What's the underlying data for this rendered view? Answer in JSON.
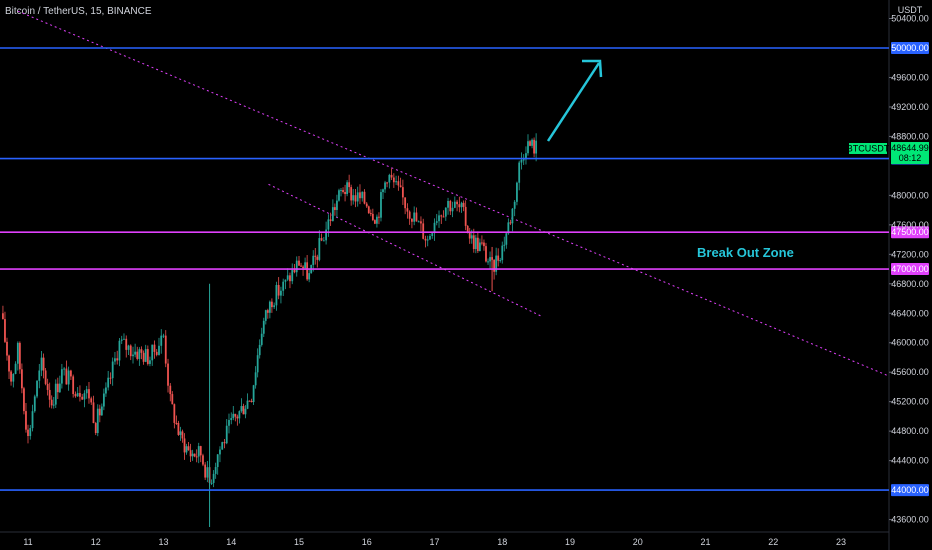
{
  "header": {
    "title": "Bitcoin / TetherUS, 15, BINANCE"
  },
  "axis": {
    "currency": "USDT"
  },
  "chart_data": {
    "type": "candlestick",
    "title": "Bitcoin / TetherUS, 15, BINANCE",
    "x_ticks": [
      "11",
      "12",
      "13",
      "14",
      "15",
      "16",
      "17",
      "18",
      "19",
      "20",
      "21",
      "22",
      "23"
    ],
    "y_ticks": [
      "50400.00",
      "49600.00",
      "49200.00",
      "48800.00",
      "48000.00",
      "47600.00",
      "47200.00",
      "46800.00",
      "46400.00",
      "46000.00",
      "45600.00",
      "45200.00",
      "44800.00",
      "44400.00",
      "43600.00"
    ],
    "ylim": [
      43400,
      50550
    ],
    "grid": false,
    "horizontal_levels": [
      {
        "price": 50000,
        "label": "50000.00",
        "color": "#2962ff"
      },
      {
        "price": 48500,
        "label": "48500.00",
        "color": "#2962ff"
      },
      {
        "price": 47500,
        "label": "47500.00",
        "color": "#e040fb"
      },
      {
        "price": 47000,
        "label": "47000.00",
        "color": "#e040fb"
      },
      {
        "price": 44000,
        "label": "44000.00",
        "color": "#2962ff"
      }
    ],
    "last_price": {
      "symbol": "BTCUSDT",
      "price": "48644.99",
      "timer": "08:12",
      "color": "#00e676"
    },
    "annotation": {
      "text": "Break Out Zone",
      "color": "#26c6da"
    },
    "trend_lines": [
      {
        "from": [
          "10.85",
          50500
        ],
        "to": [
          "23.7",
          45550
        ],
        "color": "#e040fb",
        "style": "dotted"
      },
      {
        "from": [
          "14.55",
          48150
        ],
        "to": [
          "18.6",
          46350
        ],
        "color": "#e040fb",
        "style": "dotted"
      }
    ],
    "price_path": [
      {
        "day": 10.6,
        "price": 46400
      },
      {
        "day": 10.75,
        "price": 45500
      },
      {
        "day": 10.85,
        "price": 45900
      },
      {
        "day": 11.0,
        "price": 44700
      },
      {
        "day": 11.1,
        "price": 45300
      },
      {
        "day": 11.2,
        "price": 45700
      },
      {
        "day": 11.35,
        "price": 45200
      },
      {
        "day": 11.5,
        "price": 45600
      },
      {
        "day": 11.7,
        "price": 45400
      },
      {
        "day": 11.9,
        "price": 45300
      },
      {
        "day": 12.0,
        "price": 44900
      },
      {
        "day": 12.15,
        "price": 45300
      },
      {
        "day": 12.35,
        "price": 46000
      },
      {
        "day": 12.55,
        "price": 45900
      },
      {
        "day": 12.8,
        "price": 45800
      },
      {
        "day": 13.0,
        "price": 46100
      },
      {
        "day": 13.1,
        "price": 45200
      },
      {
        "day": 13.25,
        "price": 44700
      },
      {
        "day": 13.4,
        "price": 44500
      },
      {
        "day": 13.55,
        "price": 44500
      },
      {
        "day": 13.68,
        "price": 44100
      },
      {
        "day": 13.8,
        "price": 44500
      },
      {
        "day": 14.0,
        "price": 44900
      },
      {
        "day": 14.15,
        "price": 45100
      },
      {
        "day": 14.3,
        "price": 45300
      },
      {
        "day": 14.45,
        "price": 46200
      },
      {
        "day": 14.6,
        "price": 46600
      },
      {
        "day": 14.8,
        "price": 46800
      },
      {
        "day": 15.0,
        "price": 47100
      },
      {
        "day": 15.15,
        "price": 46900
      },
      {
        "day": 15.3,
        "price": 47300
      },
      {
        "day": 15.5,
        "price": 47800
      },
      {
        "day": 15.65,
        "price": 48100
      },
      {
        "day": 15.8,
        "price": 48000
      },
      {
        "day": 16.0,
        "price": 47900
      },
      {
        "day": 16.15,
        "price": 47700
      },
      {
        "day": 16.3,
        "price": 48300
      },
      {
        "day": 16.5,
        "price": 48000
      },
      {
        "day": 16.7,
        "price": 47700
      },
      {
        "day": 16.9,
        "price": 47400
      },
      {
        "day": 17.0,
        "price": 47700
      },
      {
        "day": 17.2,
        "price": 47900
      },
      {
        "day": 17.4,
        "price": 47800
      },
      {
        "day": 17.55,
        "price": 47400
      },
      {
        "day": 17.7,
        "price": 47300
      },
      {
        "day": 17.85,
        "price": 47000
      },
      {
        "day": 18.0,
        "price": 47300
      },
      {
        "day": 18.15,
        "price": 47800
      },
      {
        "day": 18.25,
        "price": 48400
      },
      {
        "day": 18.35,
        "price": 48700
      },
      {
        "day": 18.5,
        "price": 48650
      }
    ]
  }
}
